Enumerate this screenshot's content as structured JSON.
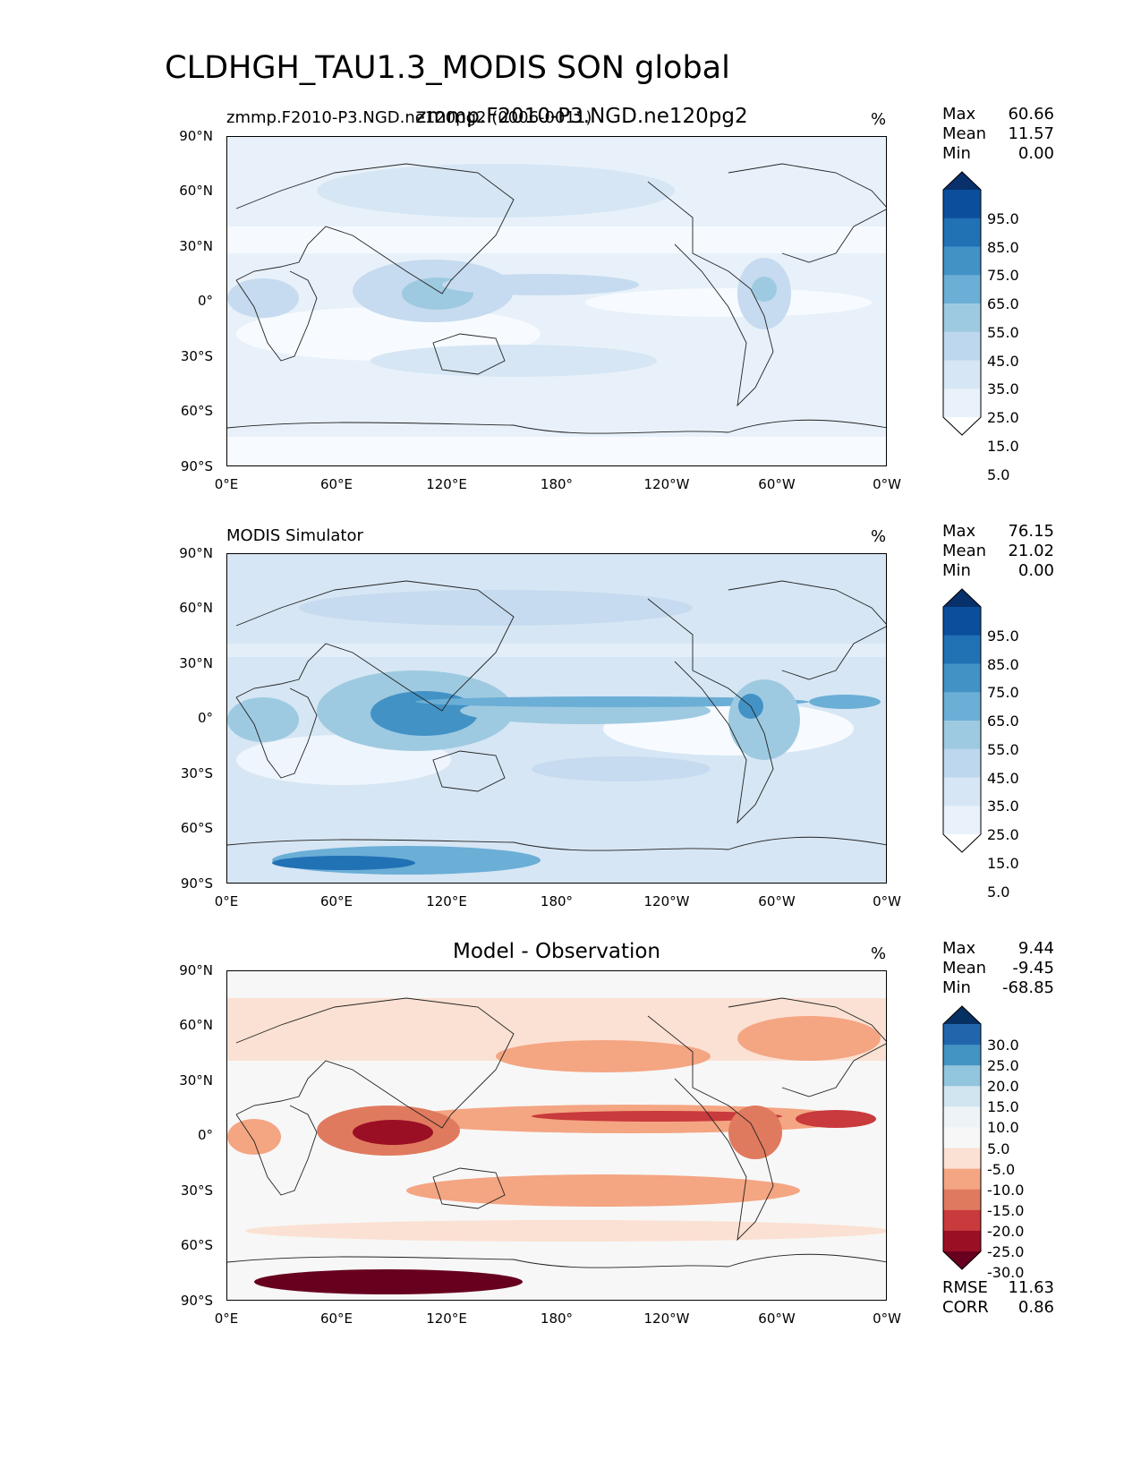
{
  "figure_title": "CLDHGH_TAU1.3_MODIS SON global",
  "chart_data": [
    {
      "type": "heatmap",
      "title_center": "zmmp.F2010-P3.NGD.ne120pg2",
      "title_left": "zmmp.F2010-P3.NGD.ne120pg2 (0006-0011)",
      "units": "%",
      "stats": {
        "max_label": "Max",
        "max": "60.66",
        "mean_label": "Mean",
        "mean": "11.57",
        "min_label": "Min",
        "min": "0.00"
      },
      "colorbar_levels": [
        "95.0",
        "85.0",
        "75.0",
        "65.0",
        "55.0",
        "45.0",
        "35.0",
        "25.0",
        "15.0",
        "5.0"
      ],
      "colorbar_colors": [
        "#08306b",
        "#0b4f9c",
        "#2171b5",
        "#4292c6",
        "#6baed6",
        "#9ecae1",
        "#bdd7ee",
        "#d6e6f4",
        "#e9f1fa",
        "#ffffff"
      ],
      "yticks": [
        "90°N",
        "60°N",
        "30°N",
        "0°",
        "30°S",
        "60°S",
        "90°S"
      ],
      "xticks": [
        "0°E",
        "60°E",
        "120°E",
        "180°",
        "120°W",
        "60°W",
        "0°W"
      ]
    },
    {
      "type": "heatmap",
      "title_left": "MODIS Simulator",
      "units": "%",
      "stats": {
        "max_label": "Max",
        "max": "76.15",
        "mean_label": "Mean",
        "mean": "21.02",
        "min_label": "Min",
        "min": "0.00"
      },
      "colorbar_levels": [
        "95.0",
        "85.0",
        "75.0",
        "65.0",
        "55.0",
        "45.0",
        "35.0",
        "25.0",
        "15.0",
        "5.0"
      ],
      "colorbar_colors": [
        "#08306b",
        "#0b4f9c",
        "#2171b5",
        "#4292c6",
        "#6baed6",
        "#9ecae1",
        "#bdd7ee",
        "#d6e6f4",
        "#e9f1fa",
        "#ffffff"
      ],
      "yticks": [
        "90°N",
        "60°N",
        "30°N",
        "0°",
        "30°S",
        "60°S",
        "90°S"
      ],
      "xticks": [
        "0°E",
        "60°E",
        "120°E",
        "180°",
        "120°W",
        "60°W",
        "0°W"
      ]
    },
    {
      "type": "heatmap",
      "title_center": "Model - Observation",
      "units": "%",
      "stats": {
        "max_label": "Max",
        "max": "9.44",
        "mean_label": "Mean",
        "mean": "-9.45",
        "min_label": "Min",
        "min": "-68.85"
      },
      "extra_stats": {
        "rmse_label": "RMSE",
        "rmse": "11.63",
        "corr_label": "CORR",
        "corr": "0.86"
      },
      "colorbar_levels": [
        "30.0",
        "25.0",
        "20.0",
        "15.0",
        "10.0",
        "5.0",
        "-5.0",
        "-10.0",
        "-15.0",
        "-20.0",
        "-25.0",
        "-30.0"
      ],
      "colorbar_colors": [
        "#053061",
        "#2166ac",
        "#4393c3",
        "#92c5de",
        "#d1e5f0",
        "#eef3f7",
        "#f7f7f7",
        "#fbe1d3",
        "#f4a582",
        "#e07a5f",
        "#c83a3c",
        "#9b0f24",
        "#67001f"
      ],
      "yticks": [
        "90°N",
        "60°N",
        "30°N",
        "0°",
        "30°S",
        "60°S",
        "90°S"
      ],
      "xticks": [
        "0°E",
        "60°E",
        "120°E",
        "180°",
        "120°W",
        "60°W",
        "0°W"
      ]
    }
  ]
}
